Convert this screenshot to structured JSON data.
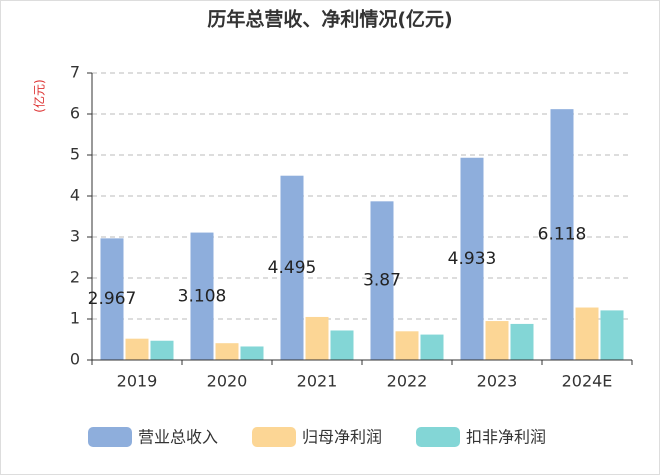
{
  "chart_data": {
    "type": "bar",
    "title": "历年总营收、净利情况(亿元)",
    "y_axis_label": "(亿元)",
    "categories": [
      "2019",
      "2020",
      "2021",
      "2022",
      "2023",
      "2024E"
    ],
    "series": [
      {
        "name": "营业总收入",
        "color": "#8eaedc",
        "values": [
          2.967,
          3.108,
          4.495,
          3.87,
          4.933,
          6.118
        ],
        "show_labels": true
      },
      {
        "name": "归母净利润",
        "color": "#fcd695",
        "values": [
          0.52,
          0.41,
          1.05,
          0.7,
          0.95,
          1.28
        ],
        "show_labels": false
      },
      {
        "name": "扣非净利润",
        "color": "#83d6d6",
        "values": [
          0.47,
          0.33,
          0.72,
          0.62,
          0.88,
          1.21
        ],
        "show_labels": false
      }
    ],
    "ylim": [
      0,
      7
    ],
    "yticks": [
      0,
      1,
      2,
      3,
      4,
      5,
      6,
      7
    ],
    "grid": true,
    "legend": "bottom"
  }
}
